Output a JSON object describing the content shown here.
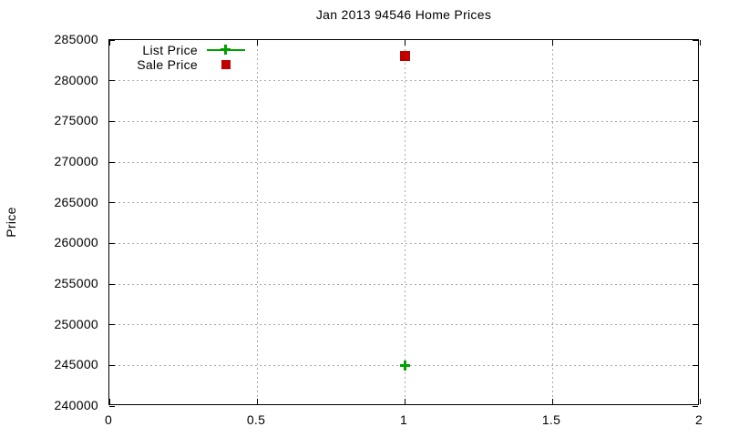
{
  "title": "Jan 2013 94546 Home Prices",
  "colors": {
    "background": "#ffffff",
    "axis": "#000000",
    "grid": "#a8a8a8",
    "list_price": "#00a000",
    "sale_price": "#c00000"
  },
  "chart_data": {
    "type": "scatter",
    "title": "Jan 2013 94546 Home Prices",
    "xlabel": "",
    "ylabel": "Price",
    "xlim": [
      0,
      2
    ],
    "ylim": [
      240000,
      285000
    ],
    "xtick_values": [
      0,
      0.5,
      1,
      1.5,
      2
    ],
    "xtick_labels": [
      "0",
      "0.5",
      "1",
      "1.5",
      "2"
    ],
    "ytick_values": [
      240000,
      245000,
      250000,
      255000,
      260000,
      265000,
      270000,
      275000,
      280000,
      285000
    ],
    "ytick_labels": [
      "240000",
      "245000",
      "250000",
      "255000",
      "260000",
      "265000",
      "270000",
      "275000",
      "280000",
      "285000"
    ],
    "grid": true,
    "legend_position": "top-left-inside",
    "series": [
      {
        "name": "List Price",
        "marker": "plus",
        "color": "#00a000",
        "points": [
          {
            "x": 1,
            "y": 245000
          }
        ]
      },
      {
        "name": "Sale Price",
        "marker": "square",
        "color": "#c00000",
        "points": [
          {
            "x": 1,
            "y": 283000
          }
        ]
      }
    ]
  }
}
